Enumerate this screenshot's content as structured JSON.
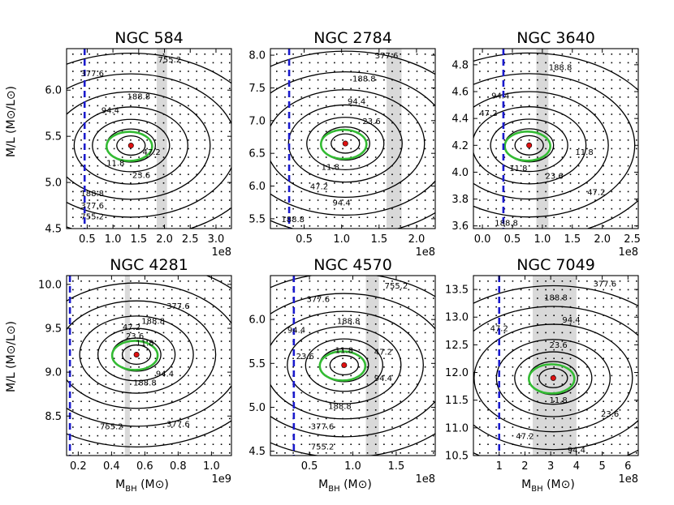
{
  "figure": {
    "ylabel": "M/L (M⊙/L⊙)",
    "xlabel": "M",
    "xlabel_sub": "BH",
    "xlabel_unit": " (M⊙)"
  },
  "chart_data": [
    {
      "type": "contour",
      "title": "NGC  584",
      "x_multiplier": "1e8",
      "xlim": [
        0.1,
        3.3
      ],
      "ylim": [
        4.5,
        6.45
      ],
      "xticks": [
        0.5,
        1.0,
        1.5,
        2.0,
        2.5,
        3.0
      ],
      "yticks": [
        4.5,
        5.0,
        5.5,
        6.0
      ],
      "xtick_labels": [
        "0.5",
        "1.0",
        "1.5",
        "2.0",
        "2.5",
        "3.0"
      ],
      "ytick_labels": [
        "4.5",
        "5.0",
        "5.5",
        "6.0"
      ],
      "best_fit": {
        "x": 1.35,
        "y": 5.4
      },
      "shaded_x_range": [
        1.85,
        2.05
      ],
      "dashed_x": 0.45,
      "contour_labels": [
        {
          "text": "755.2",
          "x": 2.1,
          "y": 6.3
        },
        {
          "text": "377.6",
          "x": 0.6,
          "y": 6.15
        },
        {
          "text": "188.8",
          "x": 1.5,
          "y": 5.9
        },
        {
          "text": "94.4",
          "x": 0.95,
          "y": 5.75
        },
        {
          "text": "47.2",
          "x": 1.75,
          "y": 5.3
        },
        {
          "text": "11.8",
          "x": 1.05,
          "y": 5.18
        },
        {
          "text": "23.6",
          "x": 1.55,
          "y": 5.05
        },
        {
          "text": "188.8",
          "x": 0.6,
          "y": 4.85
        },
        {
          "text": "377.6",
          "x": 0.6,
          "y": 4.72
        },
        {
          "text": "755.2",
          "x": 0.6,
          "y": 4.6
        }
      ]
    },
    {
      "type": "contour",
      "title": "NGC 2784",
      "x_multiplier": "1e8",
      "xlim": [
        0.05,
        2.25
      ],
      "ylim": [
        5.35,
        8.1
      ],
      "xticks": [
        0.5,
        1.0,
        1.5,
        2.0
      ],
      "yticks": [
        5.5,
        6.0,
        6.5,
        7.0,
        7.5,
        8.0
      ],
      "xtick_labels": [
        "0.5",
        "1.0",
        "1.5",
        "2.0"
      ],
      "ytick_labels": [
        "5.5",
        "6.0",
        "6.5",
        "7.0",
        "7.5",
        "8.0"
      ],
      "best_fit": {
        "x": 1.05,
        "y": 6.65
      },
      "shaded_x_range": [
        1.6,
        1.8
      ],
      "dashed_x": 0.3,
      "contour_labels": [
        {
          "text": "377.6",
          "x": 1.6,
          "y": 7.95
        },
        {
          "text": "188.8",
          "x": 1.3,
          "y": 7.6
        },
        {
          "text": "94.4",
          "x": 1.2,
          "y": 7.25
        },
        {
          "text": "23.6",
          "x": 1.4,
          "y": 6.95
        },
        {
          "text": "11.8",
          "x": 0.85,
          "y": 6.25
        },
        {
          "text": "47.2",
          "x": 0.7,
          "y": 5.95
        },
        {
          "text": "94.4",
          "x": 1.0,
          "y": 5.7
        },
        {
          "text": "188.8",
          "x": 0.35,
          "y": 5.45
        }
      ]
    },
    {
      "type": "contour",
      "title": "NGC 3640",
      "x_multiplier": "1e8",
      "xlim": [
        -0.15,
        2.6
      ],
      "ylim": [
        3.58,
        4.92
      ],
      "xticks": [
        0.0,
        0.5,
        1.0,
        1.5,
        2.0,
        2.5
      ],
      "yticks": [
        3.6,
        3.8,
        4.0,
        4.2,
        4.4,
        4.6,
        4.8
      ],
      "xtick_labels": [
        "0.0",
        "0.5",
        "1.0",
        "1.5",
        "2.0",
        "2.5"
      ],
      "ytick_labels": [
        "3.6",
        "3.8",
        "4.0",
        "4.2",
        "4.4",
        "4.6",
        "4.8"
      ],
      "best_fit": {
        "x": 0.78,
        "y": 4.2
      },
      "shaded_x_range": [
        0.9,
        1.1
      ],
      "dashed_x": 0.35,
      "contour_labels": [
        {
          "text": "188.8",
          "x": 1.3,
          "y": 4.76
        },
        {
          "text": "94.4",
          "x": 0.3,
          "y": 4.55
        },
        {
          "text": "47.2",
          "x": 0.1,
          "y": 4.42
        },
        {
          "text": "11.8",
          "x": 1.7,
          "y": 4.13
        },
        {
          "text": "11.8",
          "x": 0.6,
          "y": 4.01
        },
        {
          "text": "23.6",
          "x": 1.2,
          "y": 3.95
        },
        {
          "text": "47.2",
          "x": 1.9,
          "y": 3.83
        },
        {
          "text": "188.8",
          "x": 0.4,
          "y": 3.6
        }
      ]
    },
    {
      "type": "contour",
      "title": "NGC 4281",
      "x_multiplier": "1e9",
      "xlim": [
        0.13,
        1.12
      ],
      "ylim": [
        8.05,
        10.1
      ],
      "xticks": [
        0.2,
        0.4,
        0.6,
        0.8,
        1.0
      ],
      "yticks": [
        8.5,
        9.0,
        9.5,
        10.0
      ],
      "xtick_labels": [
        "0.2",
        "0.4",
        "0.6",
        "0.8",
        "1.0"
      ],
      "ytick_labels": [
        "8.5",
        "9.0",
        "9.5",
        "10.0"
      ],
      "best_fit": {
        "x": 0.55,
        "y": 9.2
      },
      "shaded_x_range": [
        0.48,
        0.51
      ],
      "dashed_x": 0.15,
      "contour_labels": [
        {
          "text": "377.6",
          "x": 0.8,
          "y": 9.72
        },
        {
          "text": "188.8",
          "x": 0.65,
          "y": 9.55
        },
        {
          "text": "47.2",
          "x": 0.52,
          "y": 9.48
        },
        {
          "text": "23.6",
          "x": 0.54,
          "y": 9.38
        },
        {
          "text": "11.8",
          "x": 0.6,
          "y": 9.3
        },
        {
          "text": "94.4",
          "x": 0.72,
          "y": 8.95
        },
        {
          "text": "188.8",
          "x": 0.6,
          "y": 8.85
        },
        {
          "text": "377.6",
          "x": 0.8,
          "y": 8.38
        },
        {
          "text": "755.2",
          "x": 0.4,
          "y": 8.35
        }
      ]
    },
    {
      "type": "contour",
      "title": "NGC 4570",
      "x_multiplier": "1e8",
      "xlim": [
        0.05,
        1.95
      ],
      "ylim": [
        4.45,
        6.5
      ],
      "xticks": [
        0.5,
        1.0,
        1.5
      ],
      "yticks": [
        4.5,
        5.0,
        5.5,
        6.0
      ],
      "xtick_labels": [
        "0.5",
        "1.0",
        "1.5"
      ],
      "ytick_labels": [
        "4.5",
        "5.0",
        "5.5",
        "6.0"
      ],
      "best_fit": {
        "x": 0.9,
        "y": 5.48
      },
      "shaded_x_range": [
        1.15,
        1.3
      ],
      "dashed_x": 0.32,
      "contour_labels": [
        {
          "text": "755.2",
          "x": 1.5,
          "y": 6.35
        },
        {
          "text": "377.6",
          "x": 0.6,
          "y": 6.2
        },
        {
          "text": "188.8",
          "x": 0.95,
          "y": 5.95
        },
        {
          "text": "94.4",
          "x": 0.35,
          "y": 5.85
        },
        {
          "text": "11.8",
          "x": 0.9,
          "y": 5.62
        },
        {
          "text": "23.6",
          "x": 0.45,
          "y": 5.55
        },
        {
          "text": "47.2",
          "x": 1.35,
          "y": 5.6
        },
        {
          "text": "94.4",
          "x": 1.35,
          "y": 5.3
        },
        {
          "text": "188.8",
          "x": 0.85,
          "y": 4.98
        },
        {
          "text": "377.6",
          "x": 0.65,
          "y": 4.75
        },
        {
          "text": "755.2",
          "x": 0.65,
          "y": 4.52
        }
      ]
    },
    {
      "type": "contour",
      "title": "NGC 7049",
      "x_multiplier": "1e8",
      "xlim": [
        0.0,
        6.4
      ],
      "ylim": [
        10.5,
        13.75
      ],
      "xticks": [
        1,
        2,
        3,
        4,
        5,
        6
      ],
      "yticks": [
        10.5,
        11.0,
        11.5,
        12.0,
        12.5,
        13.0,
        13.5
      ],
      "xtick_labels": [
        "1",
        "2",
        "3",
        "4",
        "5",
        "6"
      ],
      "ytick_labels": [
        "10.5",
        "11.0",
        "11.5",
        "12.0",
        "12.5",
        "13.0",
        "13.5"
      ],
      "best_fit": {
        "x": 3.1,
        "y": 11.9
      },
      "shaded_x_range": [
        2.3,
        4.0
      ],
      "dashed_x": 1.0,
      "contour_labels": [
        {
          "text": "377.6",
          "x": 5.1,
          "y": 13.55
        },
        {
          "text": "188.8",
          "x": 3.2,
          "y": 13.3
        },
        {
          "text": "94.4",
          "x": 3.8,
          "y": 12.9
        },
        {
          "text": "47.2",
          "x": 1.0,
          "y": 12.75
        },
        {
          "text": "23.6",
          "x": 3.3,
          "y": 12.45
        },
        {
          "text": "11.8",
          "x": 3.3,
          "y": 11.45
        },
        {
          "text": "23.6",
          "x": 5.3,
          "y": 11.2
        },
        {
          "text": "47.2",
          "x": 2.0,
          "y": 10.8
        },
        {
          "text": "94.4",
          "x": 4.0,
          "y": 10.55
        }
      ]
    }
  ]
}
